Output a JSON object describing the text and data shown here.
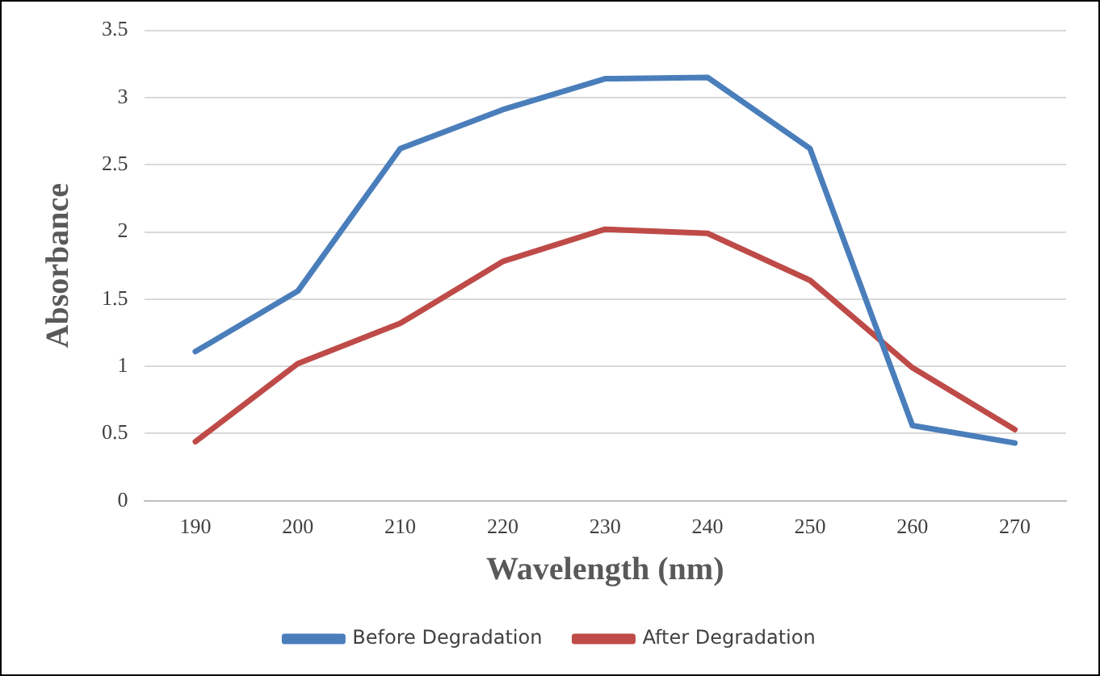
{
  "chart_data": {
    "type": "line",
    "xlabel": "Wavelength (nm)",
    "ylabel": "Absorbance",
    "categories": [
      "190",
      "200",
      "210",
      "220",
      "230",
      "240",
      "250",
      "260",
      "270"
    ],
    "series": [
      {
        "name": "Before Degradation",
        "color": "#4a7ebb",
        "values": [
          1.11,
          1.56,
          2.62,
          2.91,
          3.14,
          3.15,
          2.62,
          0.56,
          0.43
        ]
      },
      {
        "name": "After Degradation",
        "color": "#be4b48",
        "values": [
          0.44,
          1.02,
          1.32,
          1.78,
          2.02,
          1.99,
          1.64,
          0.99,
          0.53
        ]
      }
    ],
    "ylim": [
      0,
      3.5
    ],
    "yticks": [
      0,
      0.5,
      1,
      1.5,
      2,
      2.5,
      3,
      3.5
    ],
    "grid": "y",
    "legend": "bottom",
    "marker": "none",
    "line_style": "solid"
  }
}
